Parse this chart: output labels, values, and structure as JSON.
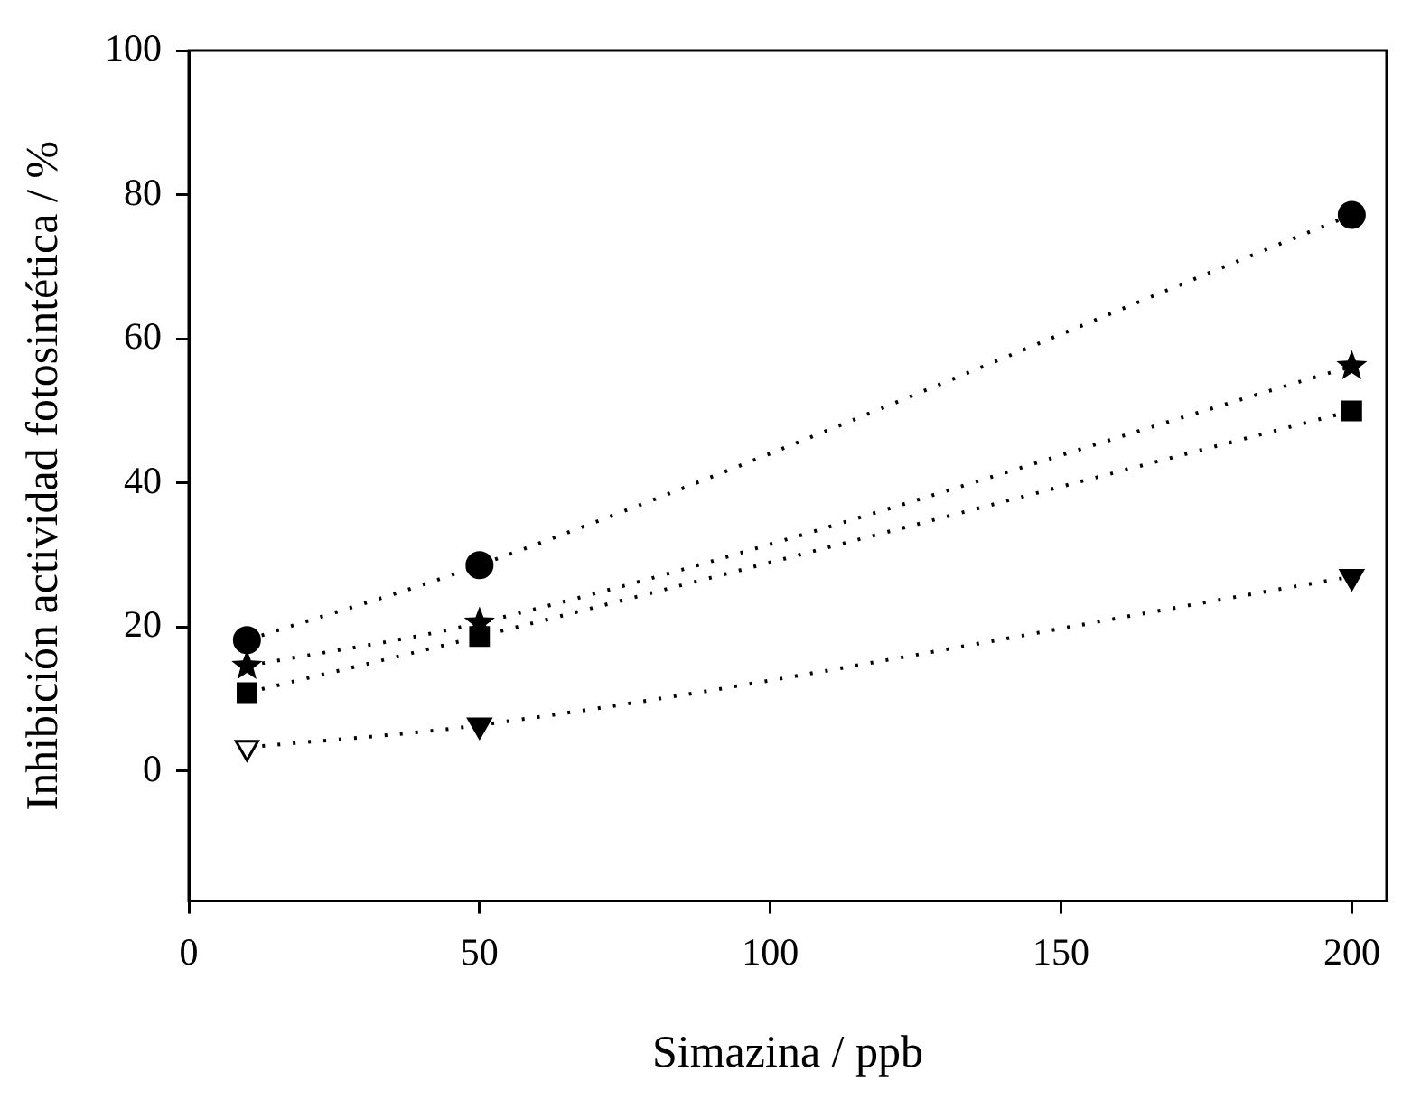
{
  "chart_data": {
    "type": "line",
    "xlabel": "Simazina / ppb",
    "ylabel": "Inhibición actividad fotosintética / %",
    "x": [
      10,
      50,
      200
    ],
    "series": [
      {
        "color": "#000000",
        "marker": "circle",
        "values": [
          18.2,
          28.6,
          77.2
        ]
      },
      {
        "color": "#000000",
        "marker": "star",
        "values": [
          14.6,
          20.6,
          56.2
        ]
      },
      {
        "color": "#000000",
        "marker": "square",
        "values": [
          10.9,
          18.7,
          50
        ]
      },
      {
        "color": "#000000",
        "marker": "triangle",
        "colors": [
          "#ffffff",
          "#000000",
          "#000000"
        ],
        "values": [
          3.3,
          6.4,
          27
        ]
      }
    ],
    "line_style": "dotted",
    "xlim": [
      0,
      206
    ],
    "xticks": [
      0,
      50,
      100,
      150,
      200
    ],
    "ylim": [
      -18,
      100
    ],
    "yticks": [
      0,
      20,
      40,
      60,
      80,
      100
    ],
    "grid": false,
    "legend": false
  }
}
